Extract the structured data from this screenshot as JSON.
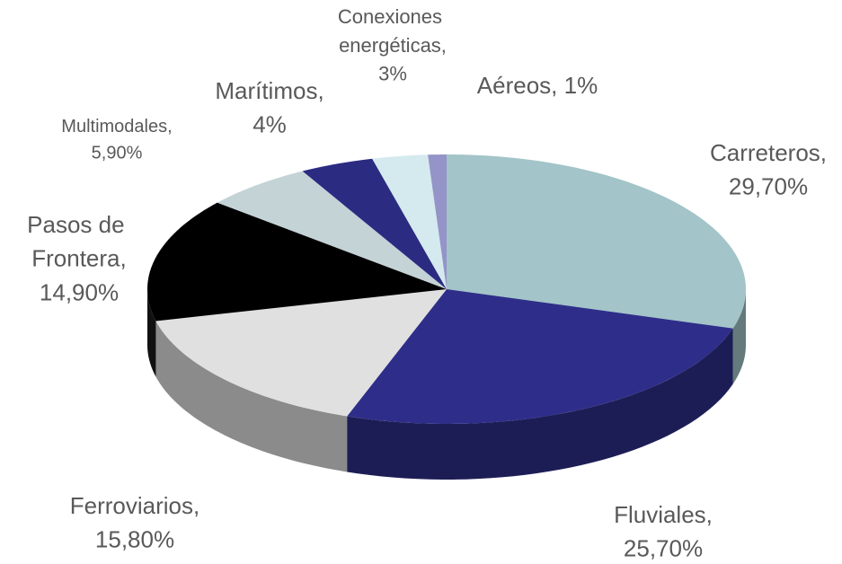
{
  "chart_data": {
    "type": "pie",
    "categories": [
      "Carreteros,",
      "Fluviales,",
      "Ferroviarios,",
      "Pasos de Frontera,",
      "Multimodales,",
      "Marítimos,",
      "Conexiones energéticas,",
      "Aéreos,"
    ],
    "values": [
      29.7,
      25.7,
      15.8,
      14.9,
      5.9,
      4,
      3,
      1
    ],
    "value_labels": [
      "29,70%",
      "25,70%",
      "15,80%",
      "14,90%",
      "5,90%",
      "4%",
      "3%",
      "1%"
    ],
    "colors": [
      "#a3c4c8",
      "#2e2e8a",
      "#e0e0e0",
      "#000000",
      "#c3d3d6",
      "#2b2b82",
      "#d4eaee",
      "#9494c8"
    ]
  }
}
